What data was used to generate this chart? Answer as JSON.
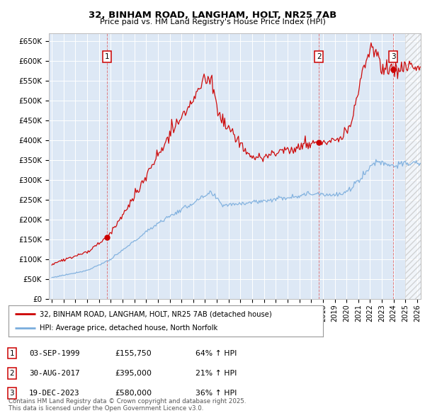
{
  "title": "32, BINHAM ROAD, LANGHAM, HOLT, NR25 7AB",
  "subtitle": "Price paid vs. HM Land Registry's House Price Index (HPI)",
  "ylim": [
    0,
    670000
  ],
  "xlim_start": 1994.75,
  "xlim_end": 2026.3,
  "background_color": "#ffffff",
  "plot_bg_color": "#dde8f5",
  "grid_color": "#ffffff",
  "red_line_color": "#cc0000",
  "blue_line_color": "#7aaddd",
  "hatch_start": 2025.0,
  "sale_markers": [
    {
      "label": "1",
      "date": 1999.672,
      "price": 155750
    },
    {
      "label": "2",
      "date": 2017.66,
      "price": 395000
    },
    {
      "label": "3",
      "date": 2023.96,
      "price": 580000
    }
  ],
  "legend_line1": "32, BINHAM ROAD, LANGHAM, HOLT, NR25 7AB (detached house)",
  "legend_line2": "HPI: Average price, detached house, North Norfolk",
  "table_entries": [
    {
      "num": "1",
      "date": "03-SEP-1999",
      "price": "£155,750",
      "change": "64% ↑ HPI"
    },
    {
      "num": "2",
      "date": "30-AUG-2017",
      "price": "£395,000",
      "change": "21% ↑ HPI"
    },
    {
      "num": "3",
      "date": "19-DEC-2023",
      "price": "£580,000",
      "change": "36% ↑ HPI"
    }
  ],
  "footer": "Contains HM Land Registry data © Crown copyright and database right 2025.\nThis data is licensed under the Open Government Licence v3.0.",
  "yticks": [
    0,
    50000,
    100000,
    150000,
    200000,
    250000,
    300000,
    350000,
    400000,
    450000,
    500000,
    550000,
    600000,
    650000
  ],
  "ytick_labels": [
    "£0",
    "£50K",
    "£100K",
    "£150K",
    "£200K",
    "£250K",
    "£300K",
    "£350K",
    "£400K",
    "£450K",
    "£500K",
    "£550K",
    "£600K",
    "£650K"
  ]
}
